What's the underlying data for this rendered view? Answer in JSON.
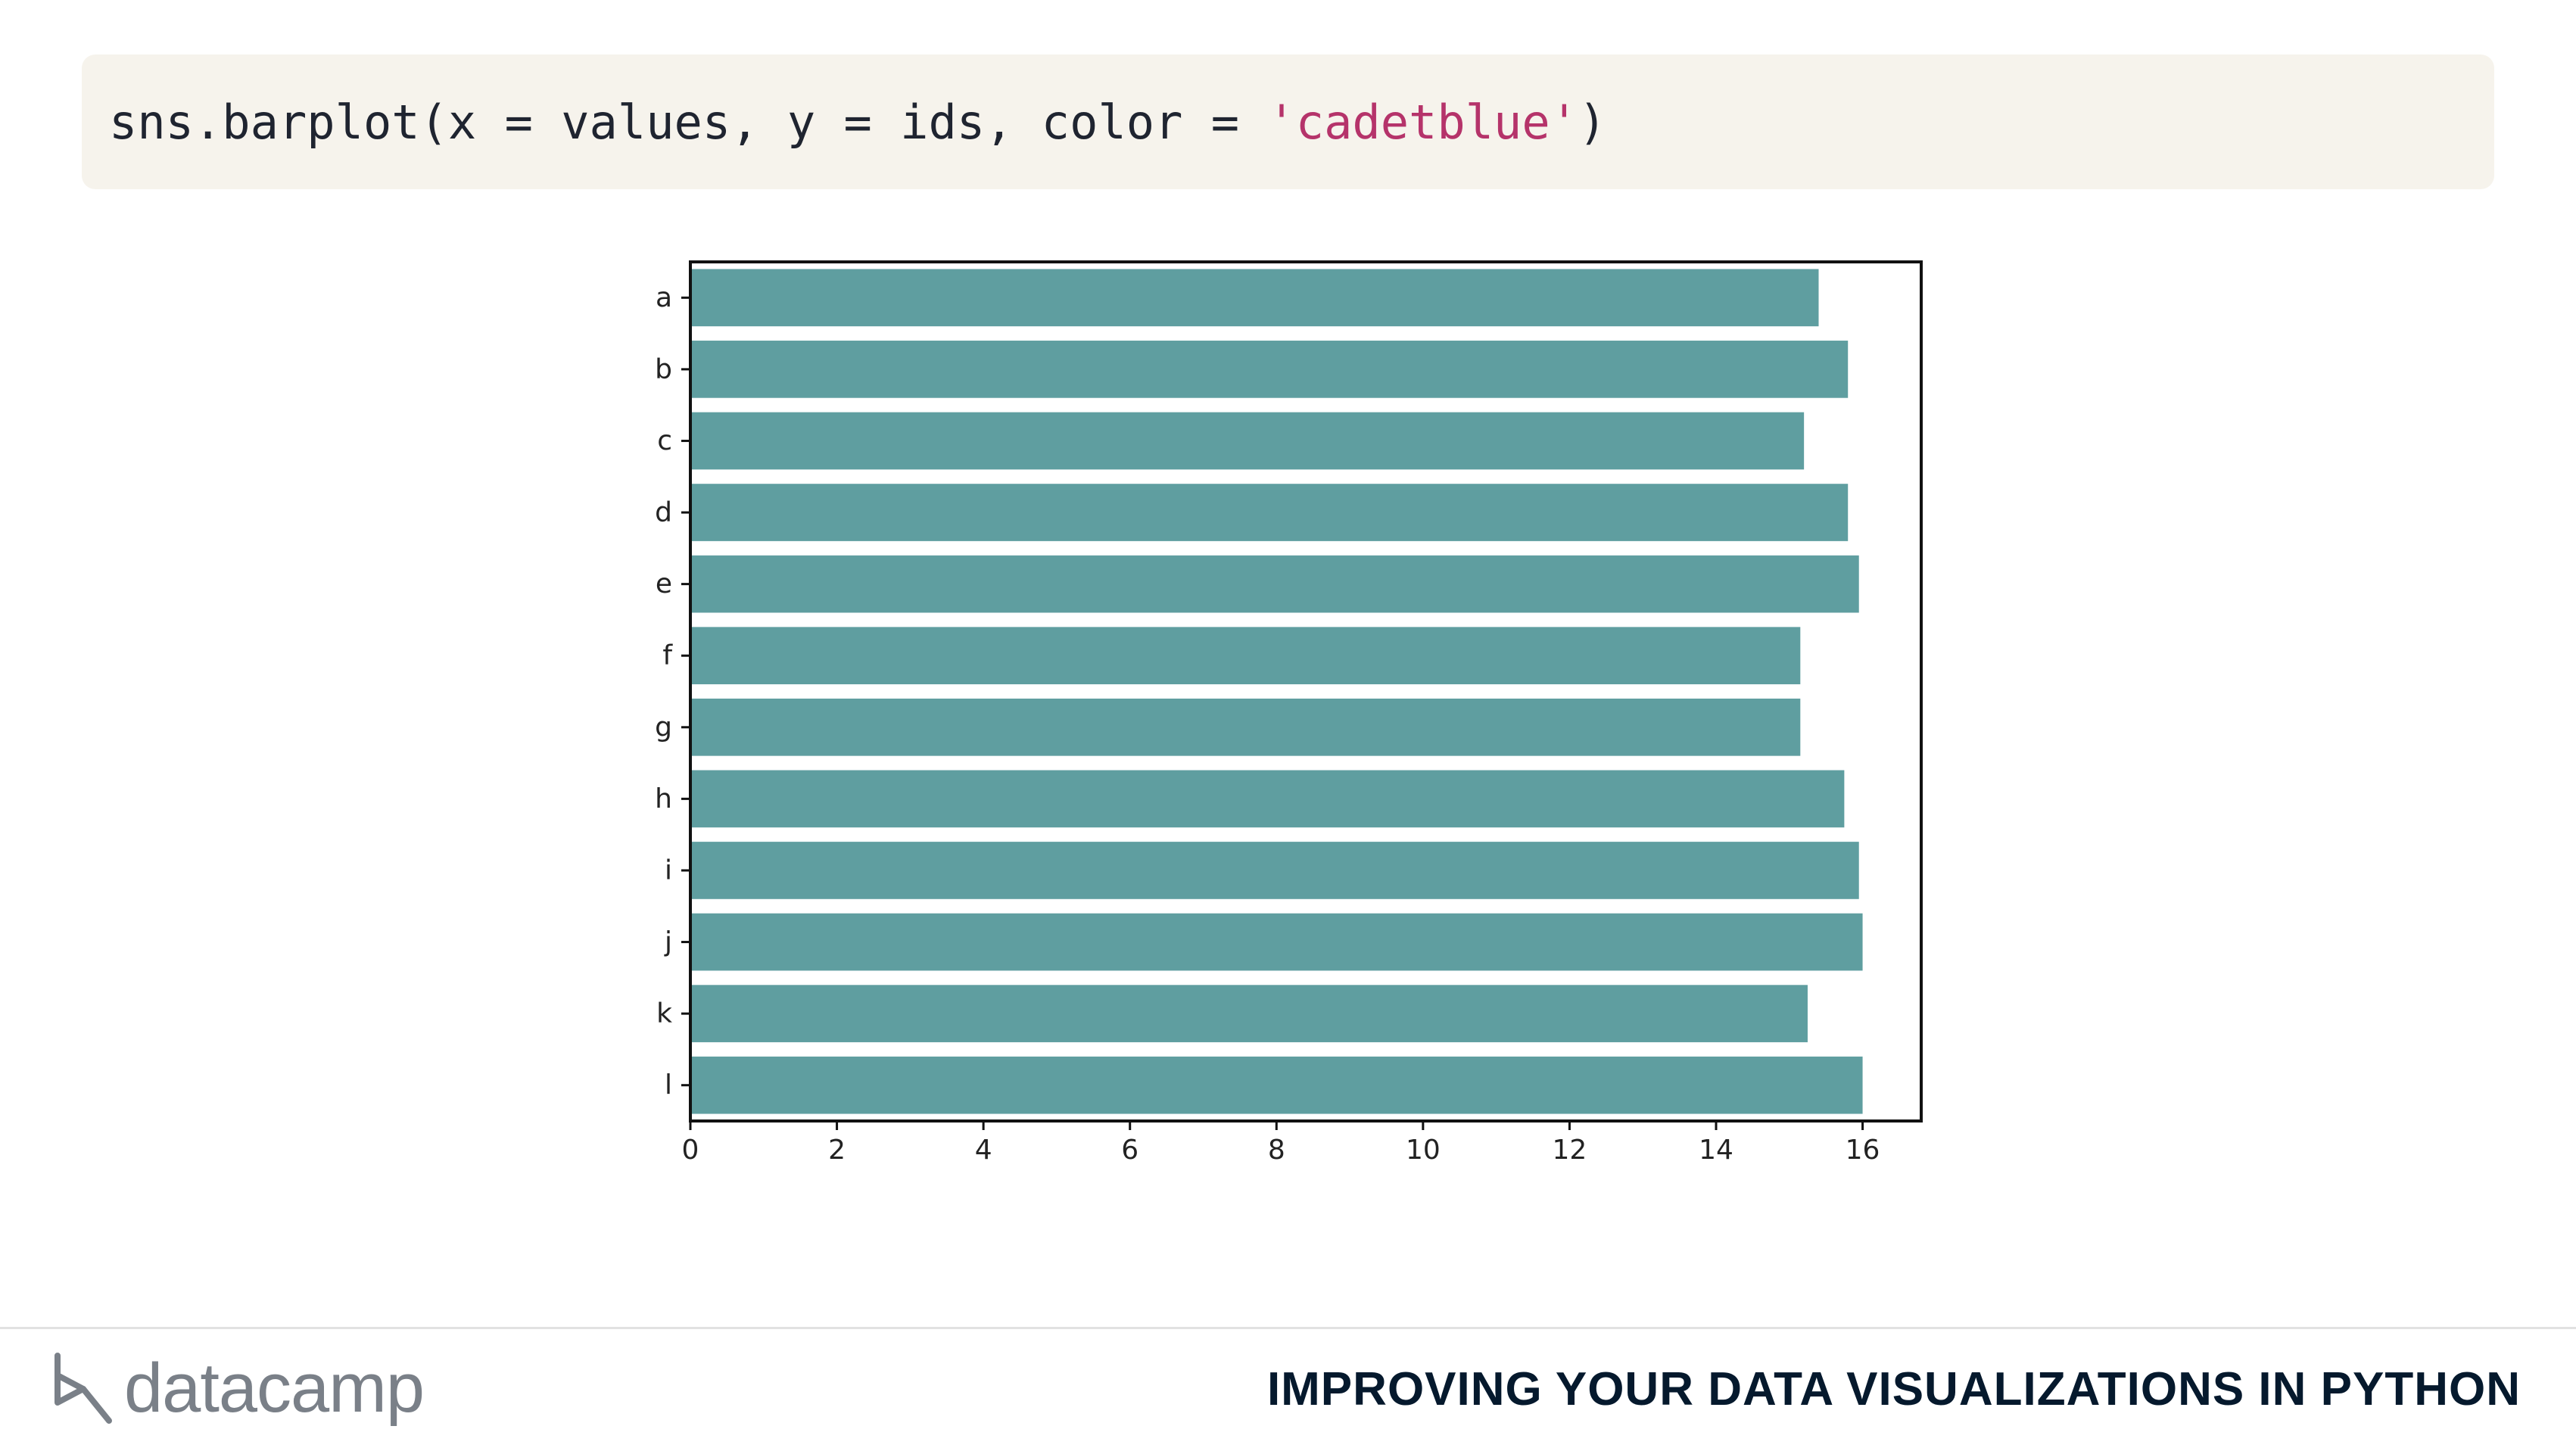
{
  "code": {
    "prefix": "sns.barplot(x = values, y = ids, color = ",
    "string_arg": "'cadetblue'",
    "suffix": ")"
  },
  "chart_data": {
    "type": "bar",
    "orientation": "horizontal",
    "categories": [
      "a",
      "b",
      "c",
      "d",
      "e",
      "f",
      "g",
      "h",
      "i",
      "j",
      "k",
      "l"
    ],
    "values": [
      15.4,
      15.8,
      15.2,
      15.8,
      15.95,
      15.15,
      15.15,
      15.75,
      15.95,
      16.0,
      15.25,
      16.0
    ],
    "xticks": [
      0,
      2,
      4,
      6,
      8,
      10,
      12,
      14,
      16
    ],
    "xlim": [
      0,
      16.8
    ],
    "title": "",
    "xlabel": "",
    "ylabel": "",
    "bar_color": "#5f9ea0",
    "grid": false
  },
  "footer": {
    "brand": "datacamp",
    "course_title": "IMPROVING YOUR DATA VISUALIZATIONS IN PYTHON"
  }
}
